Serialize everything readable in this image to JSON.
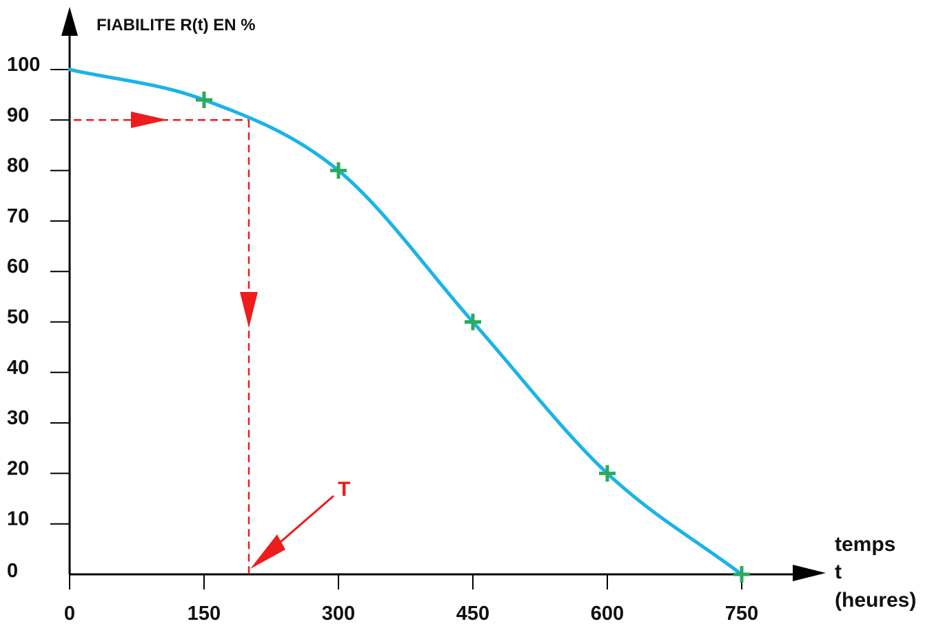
{
  "chart_data": {
    "type": "line",
    "title": "",
    "ylabel": "FIABILITE R(t) EN %",
    "xlabel_lines": [
      "temps",
      "t",
      "(heures)"
    ],
    "xlim": [
      0,
      750
    ],
    "ylim": [
      0,
      100
    ],
    "x_ticks": [
      0,
      150,
      300,
      450,
      600,
      750
    ],
    "y_ticks": [
      0,
      10,
      20,
      30,
      40,
      50,
      60,
      70,
      80,
      90,
      100
    ],
    "grid": false,
    "series": [
      {
        "values": [
          {
            "x": 0,
            "y": 100
          },
          {
            "x": 150,
            "y": 94
          },
          {
            "x": 300,
            "y": 80
          },
          {
            "x": 450,
            "y": 50
          },
          {
            "x": 600,
            "y": 20
          },
          {
            "x": 750,
            "y": 0
          }
        ],
        "color": "#1BB3E8"
      }
    ],
    "markers": [
      {
        "x": 150,
        "y": 94
      },
      {
        "x": 300,
        "y": 80
      },
      {
        "x": 450,
        "y": 50
      },
      {
        "x": 600,
        "y": 20
      },
      {
        "x": 750,
        "y": 0
      }
    ],
    "marker_color": "#2BAA5E",
    "annotation": {
      "label": "T",
      "reliability_level": 90,
      "t_value": 200,
      "color": "#EE1C1C"
    }
  }
}
